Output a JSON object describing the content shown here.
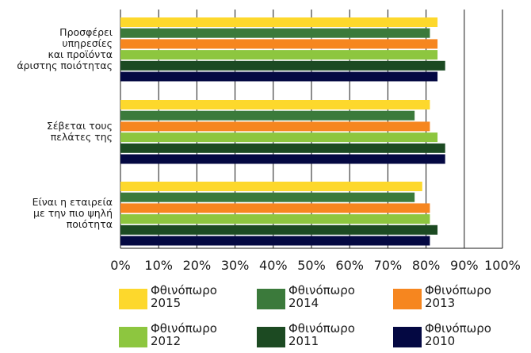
{
  "chart_data": {
    "type": "bar",
    "orientation": "horizontal",
    "categories": [
      [
        "Προσφέρει",
        "υπηρεσίες",
        "και προϊόντα",
        "άριστης ποιότητας"
      ],
      [
        "Σέβεται τους",
        "πελάτες της"
      ],
      [
        "Είναι η εταιρεία",
        "με την πιο ψηλή",
        "ποιότητα"
      ]
    ],
    "series": [
      {
        "name": [
          "Φθινόπωρο",
          "2015"
        ],
        "color": "#fdd82c",
        "values": [
          83,
          81,
          79
        ]
      },
      {
        "name": [
          "Φθινόπωρο",
          "2014"
        ],
        "color": "#3b7a3b",
        "values": [
          81,
          77,
          77
        ]
      },
      {
        "name": [
          "Φθινόπωρο",
          "2013"
        ],
        "color": "#f6861f",
        "values": [
          83,
          81,
          81
        ]
      },
      {
        "name": [
          "Φθινόπωρο",
          "2012"
        ],
        "color": "#8dc63f",
        "values": [
          83,
          83,
          81
        ]
      },
      {
        "name": [
          "Φθινόπωρο",
          "2011"
        ],
        "color": "#1c4a22",
        "values": [
          85,
          85,
          83
        ]
      },
      {
        "name": [
          "Φθινόπωρο",
          "2010"
        ],
        "color": "#040842",
        "values": [
          83,
          85,
          81
        ]
      }
    ],
    "xticks": [
      "0%",
      "10%",
      "20%",
      "30%",
      "40%",
      "50%",
      "60%",
      "70%",
      "80%",
      "90%",
      "100%"
    ],
    "xlim": [
      0,
      100
    ],
    "grid": "vertical",
    "legend_position": "bottom"
  }
}
